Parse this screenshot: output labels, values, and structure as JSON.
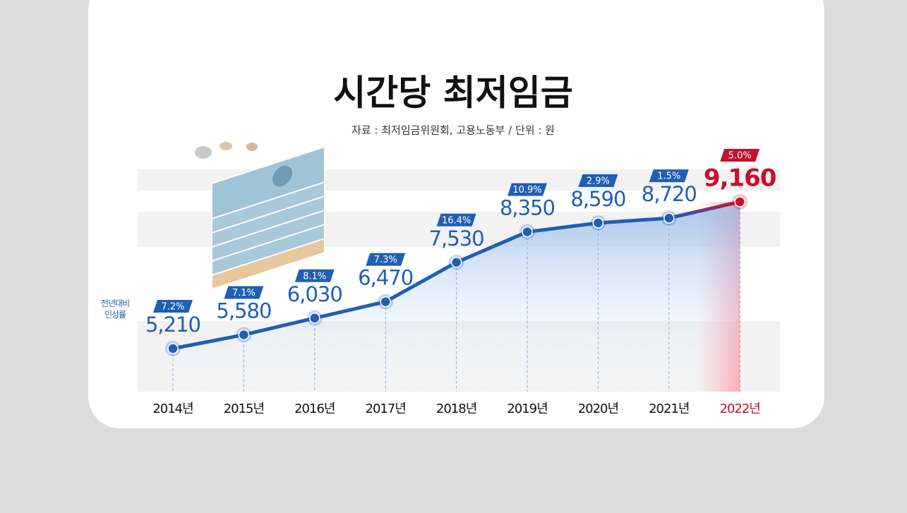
{
  "chart_data": {
    "type": "line",
    "title": "시간당 최저임금",
    "subtitle": "자료 : 최저임금위원회, 고용노동부 / 단위 : 원",
    "categories": [
      "2014년",
      "2015년",
      "2016년",
      "2017년",
      "2018년",
      "2019년",
      "2020년",
      "2021년",
      "2022년"
    ],
    "values": [
      5210,
      5580,
      6030,
      6470,
      7530,
      8350,
      8590,
      8720,
      9160
    ],
    "value_labels": [
      "5,210",
      "5,580",
      "6,030",
      "6,470",
      "7,530",
      "8,350",
      "8,590",
      "8,720",
      "9,160"
    ],
    "color": "#1f5fb4",
    "highlight_color": "#c8102e",
    "growth": {
      "name": "전년대비 인상률",
      "values": [
        7.2,
        7.1,
        8.1,
        7.3,
        16.4,
        10.9,
        2.9,
        1.5,
        5.0
      ],
      "value_labels": [
        "7.2%",
        "7.1%",
        "8.1%",
        "7.3%",
        "16.4%",
        "10.9%",
        "2.9%",
        "1.5%",
        "5.0%"
      ]
    },
    "ylim": [
      4000,
      10000
    ]
  }
}
